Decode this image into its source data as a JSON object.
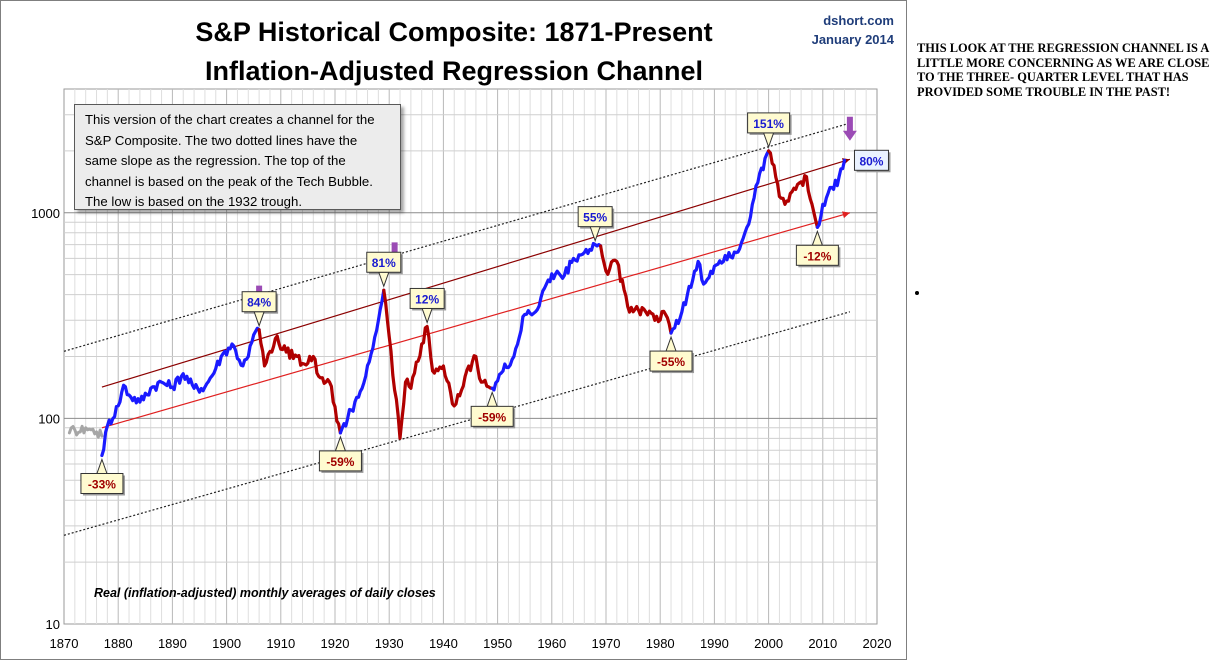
{
  "header": {
    "title_line1": "S&P Historical Composite: 1871-Present",
    "title_line2": "Inflation-Adjusted Regression Channel",
    "source": "dshort.com",
    "date": "January 2014"
  },
  "note": "This version of the chart creates a channel for the S&P Composite. The two dotted lines have the same slope as the regression. The top of the channel is based on the peak of the Tech Bubble. The low is based on the 1932 trough.",
  "side_note": "THIS LOOK AT THE REGRESSION CHANNEL IS A LITTLE MORE CONCERNING AS WE ARE CLOSE TO THE THREE- QUARTER LEVEL THAT HAS PROVIDED SOME TROUBLE IN THE PAST!",
  "footnote": "Real (inflation-adjusted) monthly averages of daily closes",
  "colors": {
    "rising": "#1a1aff",
    "falling": "#b00000",
    "early": "#a6a6a6",
    "regression": "#e02020",
    "channel_upper": "#8b0000",
    "dotted": "#222222",
    "arrow": "#9b4bb5",
    "callout_fill": "#fffbd0",
    "grid": "#c8c8c8"
  },
  "chart_data": {
    "type": "line",
    "x_label": "",
    "y_label": "",
    "y_scale": "log",
    "xlim": [
      1870,
      2020
    ],
    "ylim": [
      10,
      4000
    ],
    "x_ticks": [
      "1870",
      "1880",
      "1890",
      "1900",
      "1910",
      "1920",
      "1930",
      "1940",
      "1950",
      "1960",
      "1970",
      "1980",
      "1990",
      "2000",
      "2010",
      "2020"
    ],
    "y_ticks": [
      "10",
      "100",
      "1000"
    ],
    "grid": true,
    "regression": {
      "points": [
        [
          1877,
          90
        ],
        [
          2015,
          1000
        ]
      ]
    },
    "upper_channel": {
      "points": [
        [
          1877,
          142
        ],
        [
          2015,
          1820
        ]
      ]
    },
    "upper_dotted": {
      "points": [
        [
          1870,
          212
        ],
        [
          2015,
          2730
        ]
      ]
    },
    "lower_dotted": {
      "points": [
        [
          1870,
          27
        ],
        [
          2015,
          330
        ]
      ]
    },
    "series": [
      {
        "phase": "early",
        "points": [
          [
            1871,
            85
          ],
          [
            1872,
            88
          ],
          [
            1873,
            86
          ],
          [
            1874,
            90
          ],
          [
            1875,
            88
          ],
          [
            1876,
            86
          ],
          [
            1877,
            82
          ]
        ]
      },
      {
        "phase": "rising",
        "points": [
          [
            1877,
            66
          ],
          [
            1878,
            92
          ],
          [
            1880,
            115
          ],
          [
            1881,
            145
          ],
          [
            1882,
            130
          ],
          [
            1884,
            120
          ],
          [
            1886,
            140
          ],
          [
            1888,
            150
          ],
          [
            1890,
            142
          ],
          [
            1892,
            165
          ],
          [
            1894,
            140
          ],
          [
            1896,
            142
          ],
          [
            1898,
            175
          ],
          [
            1899,
            200
          ],
          [
            1901,
            230
          ],
          [
            1903,
            180
          ],
          [
            1904,
            200
          ],
          [
            1905,
            255
          ],
          [
            1906,
            270
          ]
        ]
      },
      {
        "phase": "falling",
        "points": [
          [
            1906,
            270
          ],
          [
            1907,
            180
          ],
          [
            1909,
            245
          ],
          [
            1911,
            210
          ],
          [
            1913,
            200
          ],
          [
            1914,
            185
          ],
          [
            1916,
            200
          ],
          [
            1917,
            160
          ],
          [
            1919,
            150
          ],
          [
            1921,
            85
          ]
        ]
      },
      {
        "phase": "rising",
        "points": [
          [
            1921,
            85
          ],
          [
            1923,
            110
          ],
          [
            1925,
            140
          ],
          [
            1927,
            220
          ],
          [
            1929,
            420
          ]
        ]
      },
      {
        "phase": "falling",
        "points": [
          [
            1929,
            420
          ],
          [
            1930,
            250
          ],
          [
            1932,
            80
          ],
          [
            1933,
            150
          ],
          [
            1934,
            140
          ],
          [
            1936,
            230
          ],
          [
            1937,
            280
          ],
          [
            1938,
            170
          ],
          [
            1940,
            180
          ],
          [
            1942,
            115
          ],
          [
            1944,
            160
          ],
          [
            1946,
            200
          ],
          [
            1947,
            150
          ],
          [
            1949,
            140
          ]
        ]
      },
      {
        "phase": "rising",
        "points": [
          [
            1949,
            140
          ],
          [
            1951,
            170
          ],
          [
            1953,
            200
          ],
          [
            1955,
            320
          ],
          [
            1957,
            330
          ],
          [
            1959,
            450
          ],
          [
            1961,
            520
          ],
          [
            1962,
            480
          ],
          [
            1964,
            600
          ],
          [
            1966,
            640
          ],
          [
            1968,
            700
          ],
          [
            1969,
            690
          ]
        ]
      },
      {
        "phase": "falling",
        "points": [
          [
            1969,
            690
          ],
          [
            1970,
            520
          ],
          [
            1972,
            580
          ],
          [
            1974,
            350
          ],
          [
            1975,
            330
          ],
          [
            1977,
            340
          ],
          [
            1979,
            300
          ],
          [
            1981,
            320
          ],
          [
            1982,
            260
          ]
        ]
      },
      {
        "phase": "rising",
        "points": [
          [
            1982,
            260
          ],
          [
            1984,
            330
          ],
          [
            1986,
            470
          ],
          [
            1987,
            580
          ],
          [
            1988,
            450
          ],
          [
            1990,
            550
          ],
          [
            1992,
            620
          ],
          [
            1994,
            640
          ],
          [
            1996,
            850
          ],
          [
            1998,
            1400
          ],
          [
            2000,
            2000
          ]
        ]
      },
      {
        "phase": "falling",
        "points": [
          [
            2000,
            2000
          ],
          [
            2001,
            1700
          ],
          [
            2002,
            1200
          ],
          [
            2003,
            1100
          ],
          [
            2005,
            1300
          ],
          [
            2007,
            1500
          ],
          [
            2008,
            1100
          ],
          [
            2009,
            850
          ]
        ]
      },
      {
        "phase": "rising",
        "points": [
          [
            2009,
            850
          ],
          [
            2010,
            1100
          ],
          [
            2011,
            1250
          ],
          [
            2012,
            1300
          ],
          [
            2013,
            1500
          ],
          [
            2014,
            1800
          ]
        ]
      }
    ],
    "callouts": [
      {
        "label": "84%",
        "x": 1906,
        "y": 270,
        "kind": "peak"
      },
      {
        "label": "81%",
        "x": 1929,
        "y": 420,
        "kind": "peak"
      },
      {
        "label": "12%",
        "x": 1937,
        "y": 280,
        "kind": "peak"
      },
      {
        "label": "55%",
        "x": 1968,
        "y": 700,
        "kind": "peak"
      },
      {
        "label": "151%",
        "x": 2000,
        "y": 2000,
        "kind": "peak"
      },
      {
        "label": "80%",
        "x": 2014,
        "y": 1800,
        "kind": "peak"
      },
      {
        "label": "-33%",
        "x": 1877,
        "y": 66,
        "kind": "trough"
      },
      {
        "label": "-59%",
        "x": 1921,
        "y": 85,
        "kind": "trough"
      },
      {
        "label": "-59%",
        "x": 1949,
        "y": 140,
        "kind": "trough"
      },
      {
        "label": "-55%",
        "x": 1982,
        "y": 260,
        "kind": "trough"
      },
      {
        "label": "-12%",
        "x": 2009,
        "y": 850,
        "kind": "trough"
      }
    ],
    "arrows": [
      {
        "x": 1906,
        "y": 370
      },
      {
        "x": 1931,
        "y": 600
      },
      {
        "x": 2015,
        "y": 2450
      }
    ]
  }
}
